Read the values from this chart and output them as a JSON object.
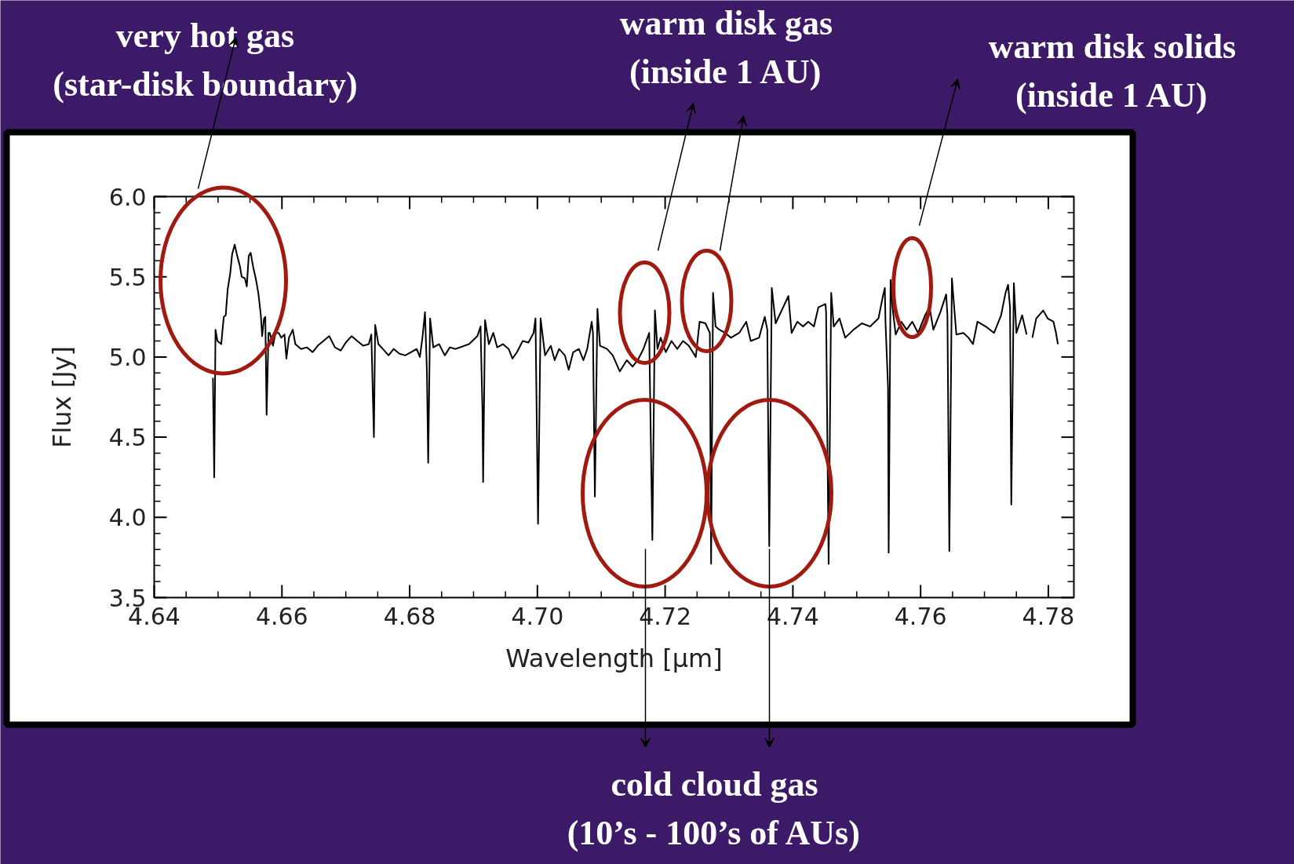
{
  "chart_data": {
    "type": "line",
    "xlabel": "Wavelength [μm]",
    "ylabel": "Flux [Jy]",
    "xlim": [
      4.64,
      4.784
    ],
    "ylim": [
      3.5,
      6.0
    ],
    "xticks": [
      {
        "value": 4.64,
        "label": "4.64"
      },
      {
        "value": 4.66,
        "label": "4.66"
      },
      {
        "value": 4.68,
        "label": "4.68"
      },
      {
        "value": 4.7,
        "label": "4.70"
      },
      {
        "value": 4.72,
        "label": "4.72"
      },
      {
        "value": 4.74,
        "label": "4.74"
      },
      {
        "value": 4.76,
        "label": "4.76"
      },
      {
        "value": 4.78,
        "label": "4.78"
      }
    ],
    "yticks": [
      3.5,
      {
        "value": 4,
        "label": "4.0"
      },
      4.5,
      {
        "value": 5,
        "label": "5.0"
      },
      5.5,
      {
        "value": 6,
        "label": "6.0"
      }
    ],
    "grid": false,
    "marker": "none",
    "line_style": "solid",
    "series": [
      {
        "color": "#000000",
        "x": [
          4.6492,
          4.6494,
          4.6496,
          4.6499,
          4.6502,
          4.6505,
          4.6507,
          4.6509,
          4.6512,
          4.6515,
          4.6519,
          4.6522,
          4.6526,
          4.653,
          4.6534,
          4.6537,
          4.6542,
          4.6545,
          4.6548,
          4.6551,
          4.6555,
          4.6559,
          4.6563,
          4.6567,
          4.6569,
          4.6572,
          4.6574,
          4.6576,
          4.6579,
          4.6581,
          4.6586,
          4.659,
          4.6595,
          4.6599,
          4.6604,
          4.6607,
          4.6611,
          4.6617,
          4.6621,
          4.663,
          4.6639,
          4.6648,
          4.6656,
          4.6665,
          4.6674,
          4.6683,
          4.6692,
          4.67,
          4.6709,
          4.6718,
          4.6727,
          4.6736,
          4.674,
          4.6744,
          4.6746,
          4.6751,
          4.6758,
          4.6767,
          4.6775,
          4.6784,
          4.6793,
          4.6802,
          4.6811,
          4.6816,
          4.682,
          4.6824,
          4.6827,
          4.6829,
          4.6832,
          4.6837,
          4.6846,
          4.6855,
          4.6863,
          4.6872,
          4.6893,
          4.6906,
          4.6911,
          4.6914,
          4.6915,
          4.6918,
          4.6924,
          4.6931,
          4.6937,
          4.6946,
          4.6955,
          4.6961,
          4.6968,
          4.6977,
          4.6986,
          4.6994,
          4.6997,
          4.7001,
          4.7005,
          4.7012,
          4.7021,
          4.7027,
          4.7034,
          4.7043,
          4.7049,
          4.7056,
          4.7065,
          4.7072,
          4.7078,
          4.7085,
          4.7087,
          4.709,
          4.7094,
          4.7098,
          4.7109,
          4.7118,
          4.7129,
          4.714,
          4.7149,
          4.7157,
          4.7166,
          4.7175,
          4.718,
          4.7184,
          4.7188,
          4.7193,
          4.7201,
          4.721,
          4.7219,
          4.7228,
          4.7237,
          4.7248,
          4.7254,
          4.7263,
          4.727,
          4.7272,
          4.7275,
          4.7279,
          4.7285,
          4.7294,
          4.7303,
          4.7316,
          4.7327,
          4.7334,
          4.7347,
          4.7356,
          4.736,
          4.7363,
          4.7367,
          4.7373,
          4.7393,
          4.7398,
          4.7407,
          4.7416,
          4.7424,
          4.7433,
          4.744,
          4.7451,
          4.7452,
          4.7456,
          4.746,
          4.7464,
          4.7473,
          4.7482,
          4.7495,
          4.7508,
          4.7521,
          4.7534,
          4.7541,
          4.7544,
          4.7545,
          4.7549,
          4.755,
          4.7553,
          4.7556,
          4.7561,
          4.757,
          4.7578,
          4.7587,
          4.7596,
          4.7607,
          4.7614,
          4.762,
          4.7631,
          4.764,
          4.7642,
          4.7645,
          4.7649,
          4.7656,
          4.7667,
          4.7675,
          4.7682,
          4.7689,
          4.7702,
          4.7715,
          4.7726,
          4.7733,
          4.7737,
          4.774,
          4.7742,
          4.7746,
          4.775,
          4.7759,
          4.7766,
          4.777,
          4.7775,
          4.7781,
          4.7792,
          4.7799,
          4.7808,
          4.7812,
          4.7815
        ],
        "values": [
          4.87,
          4.25,
          5.17,
          5.1,
          5.09,
          5.08,
          5.17,
          5.25,
          5.26,
          5.42,
          5.52,
          5.64,
          5.7,
          5.63,
          5.57,
          5.5,
          5.49,
          5.44,
          5.63,
          5.65,
          5.56,
          5.49,
          5.4,
          5.26,
          5.13,
          5.24,
          5.25,
          4.64,
          5.15,
          5.15,
          5.07,
          5.15,
          5.15,
          5.12,
          5.14,
          4.99,
          5.12,
          5.17,
          5.08,
          5.05,
          5.06,
          5.03,
          5.07,
          5.1,
          5.13,
          5.06,
          5.04,
          5.09,
          5.13,
          5.1,
          5.07,
          5.08,
          5.14,
          4.5,
          5.2,
          5.08,
          5.05,
          5.01,
          5.05,
          5.02,
          5.01,
          5.03,
          5.05,
          5.0,
          5.12,
          5.28,
          4.91,
          4.34,
          5.24,
          5.06,
          5.08,
          5.01,
          5.06,
          5.05,
          5.08,
          5.13,
          5.19,
          4.66,
          4.22,
          5.23,
          5.08,
          5.15,
          5.06,
          5.08,
          5.05,
          4.99,
          5.03,
          5.1,
          5.09,
          5.15,
          5.24,
          3.96,
          5.24,
          5.01,
          5.07,
          4.98,
          5.05,
          5.01,
          4.92,
          5.03,
          5.05,
          4.98,
          5.05,
          5.22,
          5.15,
          4.13,
          5.3,
          5.07,
          5.05,
          5.01,
          4.91,
          4.98,
          4.94,
          4.98,
          5.05,
          5.15,
          3.86,
          5.29,
          5.05,
          5.12,
          5.03,
          5.1,
          5.05,
          5.1,
          5.07,
          5.0,
          5.22,
          5.21,
          5.15,
          3.71,
          5.4,
          5.19,
          5.17,
          5.15,
          5.12,
          5.15,
          5.22,
          5.1,
          5.12,
          5.25,
          5.17,
          3.82,
          5.43,
          5.21,
          5.38,
          5.15,
          5.22,
          5.19,
          5.22,
          5.19,
          5.31,
          5.33,
          5.28,
          3.71,
          5.4,
          5.19,
          5.24,
          5.12,
          5.17,
          5.21,
          5.19,
          5.24,
          5.38,
          5.43,
          5.22,
          4.81,
          3.78,
          5.48,
          5.31,
          5.14,
          5.22,
          5.17,
          5.22,
          5.15,
          5.26,
          5.31,
          5.17,
          5.28,
          5.39,
          5.26,
          3.79,
          5.49,
          5.14,
          5.15,
          5.12,
          5.08,
          5.22,
          5.19,
          5.15,
          5.26,
          5.4,
          5.45,
          5.31,
          4.08,
          5.46,
          5.15,
          5.26,
          5.14,
          null,
          5.12,
          5.24,
          5.29,
          5.24,
          5.22,
          5.15,
          5.08
        ]
      }
    ],
    "annotations": [
      "very hot gas\n(star-disk boundary)",
      "warm disk gas\n(inside 1 AU)",
      "warm disk solids\n(inside 1 AU)",
      "cold cloud gas\n(10’s - 100’s of AUs)"
    ]
  }
}
